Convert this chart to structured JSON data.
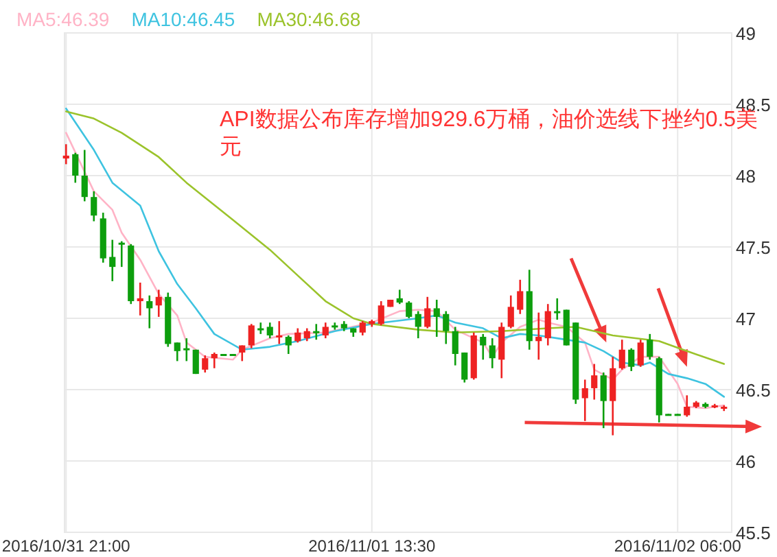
{
  "chart_data": {
    "type": "candlestick",
    "annotations": [
      "API数据公布库存增加929.6万桶，油价选线下挫约0.5美元"
    ],
    "x": [
      "2016-10-31T21:00",
      "2016-10-31T21:30",
      "2016-10-31T22:00",
      "2016-10-31T22:30",
      "2016-10-31T23:00",
      "2016-10-31T23:30",
      "2016-11-01T00:00",
      "2016-11-01T00:30",
      "2016-11-01T01:00",
      "2016-11-01T01:30",
      "2016-11-01T02:00",
      "2016-11-01T02:30",
      "2016-11-01T03:00",
      "2016-11-01T03:30",
      "2016-11-01T04:00",
      "2016-11-01T04:30",
      "2016-11-01T05:00",
      "2016-11-01T05:30",
      "2016-11-01T06:00",
      "2016-11-01T06:30",
      "2016-11-01T07:00",
      "2016-11-01T07:30",
      "2016-11-01T08:00",
      "2016-11-01T08:30",
      "2016-11-01T09:00",
      "2016-11-01T09:30",
      "2016-11-01T10:00",
      "2016-11-01T10:30",
      "2016-11-01T11:00",
      "2016-11-01T11:30",
      "2016-11-01T12:00",
      "2016-11-01T12:30",
      "2016-11-01T13:00",
      "2016-11-01T13:30",
      "2016-11-01T14:00",
      "2016-11-01T14:30",
      "2016-11-01T15:00",
      "2016-11-01T15:30",
      "2016-11-01T16:00",
      "2016-11-01T16:30",
      "2016-11-01T17:00",
      "2016-11-01T17:30",
      "2016-11-01T18:00",
      "2016-11-01T18:30",
      "2016-11-01T19:00",
      "2016-11-01T19:30",
      "2016-11-01T20:00",
      "2016-11-01T20:30",
      "2016-11-01T21:00",
      "2016-11-01T21:30",
      "2016-11-01T22:00",
      "2016-11-01T22:30",
      "2016-11-01T23:00",
      "2016-11-01T23:30",
      "2016-11-02T00:00",
      "2016-11-02T00:30",
      "2016-11-02T01:00",
      "2016-11-02T01:30",
      "2016-11-02T02:00",
      "2016-11-02T02:30",
      "2016-11-02T03:00",
      "2016-11-02T03:30",
      "2016-11-02T04:00",
      "2016-11-02T04:30",
      "2016-11-02T05:00",
      "2016-11-02T05:30",
      "2016-11-02T06:00",
      "2016-11-02T06:30",
      "2016-11-02T07:00",
      "2016-11-02T07:30",
      "2016-11-02T08:00",
      "2016-11-02T08:30"
    ],
    "ohlc": [
      [
        48.12,
        48.22,
        48.08,
        48.14
      ],
      [
        48.15,
        48.16,
        47.95,
        48.0
      ],
      [
        48.0,
        48.18,
        47.82,
        47.85
      ],
      [
        47.85,
        47.89,
        47.68,
        47.72
      ],
      [
        47.7,
        47.74,
        47.39,
        47.42
      ],
      [
        47.43,
        47.55,
        47.26,
        47.36
      ],
      [
        47.53,
        47.54,
        47.36,
        47.52
      ],
      [
        47.51,
        47.52,
        47.1,
        47.12
      ],
      [
        47.12,
        47.25,
        47.02,
        47.14
      ],
      [
        47.12,
        47.16,
        46.93,
        47.07
      ],
      [
        47.09,
        47.2,
        47.01,
        47.15
      ],
      [
        47.15,
        47.18,
        46.8,
        46.82
      ],
      [
        46.83,
        46.83,
        46.7,
        46.77
      ],
      [
        46.79,
        46.86,
        46.7,
        46.78
      ],
      [
        46.78,
        46.78,
        46.61,
        46.61
      ],
      [
        46.64,
        46.74,
        46.62,
        46.72
      ],
      [
        46.72,
        46.76,
        46.65,
        46.75
      ],
      [
        46.75,
        46.75,
        46.74,
        46.74
      ],
      [
        46.75,
        46.75,
        46.74,
        46.74
      ],
      [
        46.76,
        46.81,
        46.7,
        46.81
      ],
      [
        46.81,
        46.96,
        46.79,
        46.95
      ],
      [
        46.93,
        46.97,
        46.89,
        46.92
      ],
      [
        46.94,
        46.97,
        46.86,
        46.88
      ],
      [
        46.87,
        46.98,
        46.82,
        46.88
      ],
      [
        46.87,
        46.88,
        46.75,
        46.81
      ],
      [
        46.84,
        46.93,
        46.83,
        46.9
      ],
      [
        46.86,
        46.93,
        46.84,
        46.91
      ],
      [
        46.91,
        46.96,
        46.85,
        46.9
      ],
      [
        46.88,
        46.97,
        46.86,
        46.94
      ],
      [
        46.95,
        46.97,
        46.92,
        46.94
      ],
      [
        46.96,
        46.98,
        46.91,
        46.93
      ],
      [
        46.93,
        46.93,
        46.87,
        46.9
      ],
      [
        46.9,
        46.98,
        46.88,
        46.97
      ],
      [
        46.96,
        46.99,
        46.94,
        46.98
      ],
      [
        46.96,
        47.12,
        46.95,
        47.09
      ],
      [
        47.08,
        47.13,
        47.08,
        47.13
      ],
      [
        47.14,
        47.2,
        47.1,
        47.11
      ],
      [
        47.11,
        47.12,
        47.0,
        47.01
      ],
      [
        47.03,
        47.05,
        46.86,
        46.94
      ],
      [
        46.94,
        47.15,
        46.93,
        47.07
      ],
      [
        47.07,
        47.13,
        46.87,
        47.01
      ],
      [
        47.03,
        47.05,
        46.82,
        46.91
      ],
      [
        46.91,
        46.94,
        46.67,
        46.75
      ],
      [
        46.76,
        46.76,
        46.55,
        46.57
      ],
      [
        46.58,
        46.9,
        46.57,
        46.88
      ],
      [
        46.87,
        46.89,
        46.71,
        46.81
      ],
      [
        46.81,
        46.86,
        46.65,
        46.72
      ],
      [
        46.71,
        46.97,
        46.58,
        46.94
      ],
      [
        46.94,
        47.16,
        46.93,
        47.08
      ],
      [
        47.06,
        47.27,
        47.03,
        47.19
      ],
      [
        47.19,
        47.34,
        46.78,
        46.84
      ],
      [
        46.84,
        47.04,
        46.71,
        46.87
      ],
      [
        46.86,
        47.1,
        46.81,
        47.05
      ],
      [
        47.05,
        47.14,
        46.99,
        47.04
      ],
      [
        47.06,
        47.06,
        46.81,
        46.81
      ],
      [
        46.97,
        46.97,
        46.4,
        46.43
      ],
      [
        46.44,
        46.57,
        46.28,
        46.51
      ],
      [
        46.51,
        46.68,
        46.43,
        46.6
      ],
      [
        46.6,
        46.62,
        46.23,
        46.42
      ],
      [
        46.42,
        46.73,
        46.18,
        46.65
      ],
      [
        46.65,
        46.85,
        46.64,
        46.78
      ],
      [
        46.78,
        46.79,
        46.63,
        46.66
      ],
      [
        46.67,
        46.85,
        46.66,
        46.83
      ],
      [
        46.85,
        46.89,
        46.71,
        46.73
      ],
      [
        46.72,
        46.73,
        46.27,
        46.32
      ],
      [
        46.33,
        46.33,
        46.32,
        46.32
      ],
      [
        46.33,
        46.33,
        46.32,
        46.32
      ],
      [
        46.32,
        46.46,
        46.31,
        46.38
      ],
      [
        46.38,
        46.42,
        46.37,
        46.41
      ],
      [
        46.4,
        46.41,
        46.37,
        46.38
      ],
      [
        46.38,
        46.4,
        46.37,
        46.39
      ],
      [
        46.37,
        46.39,
        46.35,
        46.38
      ]
    ],
    "colors": [
      "#ee2222",
      "#0d9e0d",
      "#0d9e0d",
      "#0d9e0d",
      "#0d9e0d",
      "#0d9e0d",
      "#0d9e0d",
      "#0d9e0d",
      "#ee2222",
      "#0d9e0d",
      "#ee2222",
      "#0d9e0d",
      "#0d9e0d",
      "#0d9e0d",
      "#0d9e0d",
      "#ee2222",
      "#ee2222",
      "#0d9e0d",
      "#0d9e0d",
      "#ee2222",
      "#ee2222",
      "#0d9e0d",
      "#0d9e0d",
      "#ee2222",
      "#0d9e0d",
      "#ee2222",
      "#ee2222",
      "#0d9e0d",
      "#ee2222",
      "#0d9e0d",
      "#0d9e0d",
      "#0d9e0d",
      "#ee2222",
      "#ee2222",
      "#ee2222",
      "#ee2222",
      "#0d9e0d",
      "#0d9e0d",
      "#0d9e0d",
      "#ee2222",
      "#0d9e0d",
      "#0d9e0d",
      "#0d9e0d",
      "#0d9e0d",
      "#ee2222",
      "#0d9e0d",
      "#0d9e0d",
      "#ee2222",
      "#ee2222",
      "#ee2222",
      "#0d9e0d",
      "#ee2222",
      "#ee2222",
      "#0d9e0d",
      "#0d9e0d",
      "#0d9e0d",
      "#ee2222",
      "#ee2222",
      "#0d9e0d",
      "#ee2222",
      "#ee2222",
      "#0d9e0d",
      "#ee2222",
      "#0d9e0d",
      "#0d9e0d",
      "#0d9e0d",
      "#0d9e0d",
      "#ee2222",
      "#ee2222",
      "#0d9e0d",
      "#ee2222",
      "#ee2222"
    ],
    "series": [
      {
        "type": "line",
        "name": "MA5:46.39",
        "color": "#ffb3c6",
        "x": [
          "2016-10-31T21:00",
          "2016-10-31T22:30",
          "2016-10-31T23:30",
          "2016-11-01T00:00",
          "2016-11-01T01:00",
          "2016-11-01T02:00",
          "2016-11-01T03:00",
          "2016-11-01T03:30",
          "2016-11-01T04:30",
          "2016-11-01T06:00",
          "2016-11-01T06:30",
          "2016-11-01T08:00",
          "2016-11-01T09:00",
          "2016-11-01T11:00",
          "2016-11-01T13:30",
          "2016-11-01T15:00",
          "2016-11-01T16:00",
          "2016-11-01T17:00",
          "2016-11-01T18:00",
          "2016-11-01T19:30",
          "2016-11-01T20:00",
          "2016-11-01T20:30",
          "2016-11-01T21:30",
          "2016-11-01T22:30",
          "2016-11-01T23:00",
          "2016-11-02T00:00",
          "2016-11-02T01:00",
          "2016-11-02T01:30",
          "2016-11-02T02:30",
          "2016-11-02T03:00",
          "2016-11-02T04:00",
          "2016-11-02T05:00",
          "2016-11-02T06:00",
          "2016-11-02T06:30",
          "2016-11-02T07:30",
          "2016-11-02T08:30"
        ],
        "values": [
          48.3,
          47.89,
          47.76,
          47.6,
          47.41,
          47.17,
          47.02,
          46.83,
          46.73,
          46.71,
          46.78,
          46.86,
          46.89,
          46.9,
          46.97,
          47.05,
          47.06,
          47.05,
          46.92,
          46.83,
          46.73,
          46.83,
          46.94,
          46.99,
          46.97,
          46.94,
          46.83,
          46.64,
          46.57,
          46.64,
          46.73,
          46.73,
          46.54,
          46.38,
          46.37,
          46.39
        ]
      },
      {
        "type": "line",
        "name": "MA10:46.45",
        "color": "#3ec3e0",
        "x": [
          "2016-10-31T21:00",
          "2016-10-31T22:30",
          "2016-10-31T23:30",
          "2016-11-01T01:00",
          "2016-11-01T02:00",
          "2016-11-01T03:00",
          "2016-11-01T04:00",
          "2016-11-01T05:00",
          "2016-11-01T06:30",
          "2016-11-01T08:00",
          "2016-11-01T09:30",
          "2016-11-01T11:30",
          "2016-11-01T13:30",
          "2016-11-01T16:00",
          "2016-11-01T17:00",
          "2016-11-01T18:00",
          "2016-11-01T19:30",
          "2016-11-01T20:30",
          "2016-11-01T21:30",
          "2016-11-01T22:30",
          "2016-11-01T23:30",
          "2016-11-02T01:00",
          "2016-11-02T02:00",
          "2016-11-02T03:00",
          "2016-11-02T04:00",
          "2016-11-02T04:30",
          "2016-11-02T05:30",
          "2016-11-02T06:30",
          "2016-11-02T07:30",
          "2016-11-02T08:30"
        ],
        "values": [
          48.47,
          48.18,
          47.95,
          47.79,
          47.47,
          47.24,
          47.07,
          46.89,
          46.78,
          46.8,
          46.84,
          46.91,
          46.96,
          47.0,
          47.02,
          46.97,
          46.93,
          46.86,
          46.89,
          46.88,
          46.86,
          46.83,
          46.77,
          46.69,
          46.67,
          46.69,
          46.61,
          46.58,
          46.54,
          46.45
        ]
      },
      {
        "type": "line",
        "name": "MA30:46.68",
        "color": "#9bc32b",
        "x": [
          "2016-10-31T21:00",
          "2016-10-31T22:30",
          "2016-11-01T00:00",
          "2016-11-01T02:00",
          "2016-11-01T03:30",
          "2016-11-01T06:00",
          "2016-11-01T08:00",
          "2016-11-01T09:30",
          "2016-11-01T11:00",
          "2016-11-01T12:30",
          "2016-11-01T13:30",
          "2016-11-01T16:00",
          "2016-11-01T18:00",
          "2016-11-01T20:30",
          "2016-11-01T23:00",
          "2016-11-02T00:30",
          "2016-11-02T02:30",
          "2016-11-02T05:00",
          "2016-11-02T06:30",
          "2016-11-02T08:30"
        ],
        "values": [
          48.45,
          48.4,
          48.3,
          48.13,
          47.95,
          47.69,
          47.48,
          47.3,
          47.12,
          47.0,
          46.96,
          46.92,
          46.9,
          46.91,
          46.93,
          46.94,
          46.88,
          46.84,
          46.77,
          46.68
        ]
      }
    ],
    "xlim": [
      "2016-10-31T20:55",
      "2016-11-02T08:55"
    ],
    "xticks": [
      {
        "value": "2016-10-31T21:00",
        "label": "2016/10/31 21:00"
      },
      {
        "value": "2016-11-01T13:30",
        "label": "2016/11/01 13:30"
      },
      {
        "value": "2016-11-02T06:00",
        "label": "2016/11/02 06:00"
      }
    ],
    "ylim": [
      45.5,
      49
    ],
    "yticks": [
      45.5,
      46,
      46.5,
      47,
      47.5,
      48,
      48.5,
      49
    ],
    "grid": true,
    "legend": "top left"
  }
}
